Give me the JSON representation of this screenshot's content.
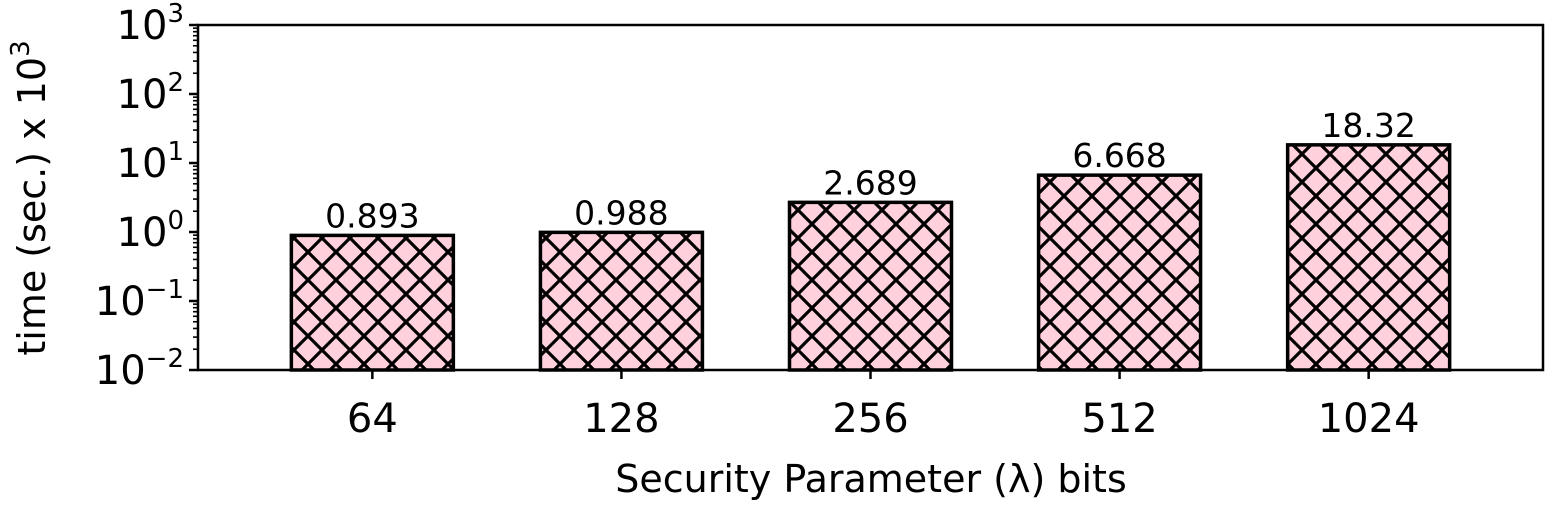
{
  "chart_data": {
    "type": "bar",
    "categories": [
      "64",
      "128",
      "256",
      "512",
      "1024"
    ],
    "values": [
      0.893,
      0.988,
      2.689,
      6.668,
      18.32
    ],
    "value_labels": [
      "0.893",
      "0.988",
      "2.689",
      "6.668",
      "18.32"
    ],
    "xlabel": "Security Parameter (λ) bits",
    "ylabel_prefix": "time (sec.) x 10",
    "ylabel_exponent": "3",
    "yscale": "log",
    "ylim": [
      0.01,
      1000
    ],
    "yticks": [
      {
        "base": "10",
        "exp": "−2",
        "value": 0.01
      },
      {
        "base": "10",
        "exp": "−1",
        "value": 0.1
      },
      {
        "base": "10",
        "exp": "0",
        "value": 1
      },
      {
        "base": "10",
        "exp": "1",
        "value": 10
      },
      {
        "base": "10",
        "exp": "2",
        "value": 100
      },
      {
        "base": "10",
        "exp": "3",
        "value": 1000
      }
    ],
    "grid": false,
    "bar_color": "#ffd1dc",
    "bar_edge_color": "#000000",
    "hatch": "crosshatch"
  }
}
